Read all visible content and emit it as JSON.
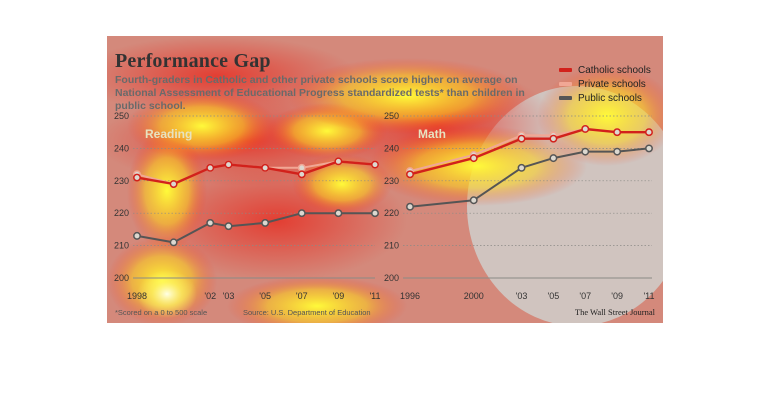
{
  "title": "Performance Gap",
  "subtitle": "Fourth-graders in Catholic and other private schools score higher on average on National Assessment of Educational Progress standardized tests* than children in public school.",
  "legend": [
    {
      "label": "Catholic schools",
      "color": "#d2211b"
    },
    {
      "label": "Private schools",
      "color": "#f1a795"
    },
    {
      "label": "Public schools",
      "color": "#555555"
    }
  ],
  "footnote": "*Scored on a 0 to 500 scale",
  "source": "Source: U.S. Department of Education",
  "credit": "The Wall Street Journal",
  "colors": {
    "catholic": "#d2211b",
    "private": "#f1a795",
    "public": "#555555"
  },
  "chart_data": [
    {
      "type": "line",
      "title": "Reading",
      "x": [
        1998,
        2000,
        2002,
        2003,
        2005,
        2007,
        2009,
        2011
      ],
      "xticklabels": [
        "1998",
        "",
        "'02",
        "'03",
        "'05",
        "'07",
        "'09",
        "'11"
      ],
      "ylim": [
        200,
        250
      ],
      "yticks": [
        200,
        210,
        220,
        230,
        240,
        250
      ],
      "grid": true,
      "series": [
        {
          "name": "Catholic schools",
          "values": [
            231,
            229,
            234,
            235,
            234,
            232,
            236,
            235
          ]
        },
        {
          "name": "Private schools",
          "values": [
            232,
            229,
            234,
            235,
            234,
            234,
            236,
            235
          ]
        },
        {
          "name": "Public schools",
          "values": [
            213,
            211,
            217,
            216,
            217,
            220,
            220,
            220
          ]
        }
      ]
    },
    {
      "type": "line",
      "title": "Math",
      "x": [
        1996,
        2000,
        2003,
        2005,
        2007,
        2009,
        2011
      ],
      "xticklabels": [
        "1996",
        "2000",
        "'03",
        "'05",
        "'07",
        "'09",
        "'11"
      ],
      "ylim": [
        200,
        250
      ],
      "yticks": [
        200,
        210,
        220,
        230,
        240,
        250
      ],
      "grid": true,
      "series": [
        {
          "name": "Catholic schools",
          "values": [
            232,
            237,
            243,
            243,
            246,
            245,
            245
          ]
        },
        {
          "name": "Private schools",
          "values": [
            233,
            238,
            244,
            244,
            246,
            245,
            245
          ]
        },
        {
          "name": "Public schools",
          "values": [
            222,
            224,
            234,
            237,
            239,
            239,
            240
          ]
        }
      ]
    }
  ]
}
